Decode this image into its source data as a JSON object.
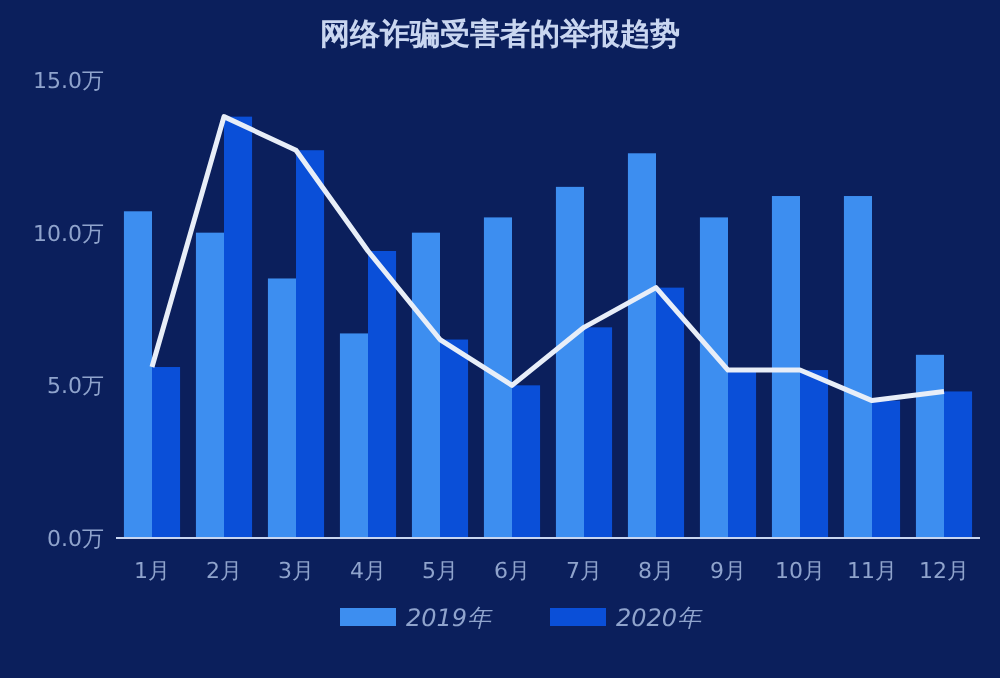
{
  "chart_data": {
    "type": "bar",
    "title": "网络诈骗受害者的举报趋势",
    "categories": [
      "1月",
      "2月",
      "3月",
      "4月",
      "5月",
      "6月",
      "7月",
      "8月",
      "9月",
      "10月",
      "11月",
      "12月"
    ],
    "series": [
      {
        "name": "2019年",
        "color": "#3d8ef0",
        "values": [
          10.7,
          10.0,
          8.5,
          6.7,
          10.0,
          10.5,
          11.5,
          12.6,
          10.5,
          11.2,
          11.2,
          6.0
        ]
      },
      {
        "name": "2020年",
        "color": "#0a4fd8",
        "values": [
          5.6,
          13.8,
          12.7,
          9.4,
          6.5,
          5.0,
          6.9,
          8.2,
          5.5,
          5.5,
          4.5,
          4.8
        ]
      },
      {
        "type": "line",
        "color": "#e8eef8",
        "values": [
          5.6,
          13.8,
          12.7,
          9.4,
          6.5,
          5.0,
          6.9,
          8.2,
          5.5,
          5.5,
          4.5,
          4.8
        ]
      }
    ],
    "ylim": [
      0,
      15
    ],
    "yticks": [
      {
        "value": 0,
        "label": "0.0万"
      },
      {
        "value": 5,
        "label": "5.0万"
      },
      {
        "value": 10,
        "label": "10.0万"
      },
      {
        "value": 15,
        "label": "15.0万"
      }
    ],
    "grid": false,
    "legend": "bottom"
  }
}
